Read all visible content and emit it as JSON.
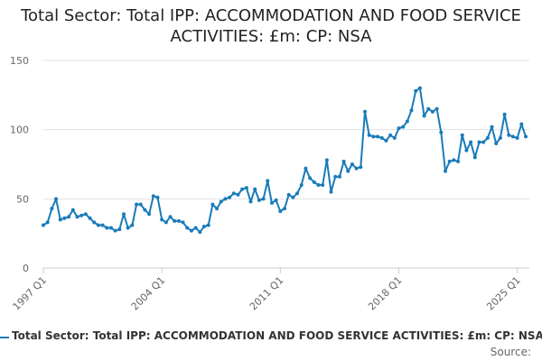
{
  "chart_data": {
    "type": "line",
    "title": "Total Sector: Total IPP: ACCOMMODATION AND FOOD SERVICE ACTIVITIES: £m: CP: NSA",
    "xlabel": "",
    "ylabel": "",
    "ylim": [
      0,
      150
    ],
    "yticks": [
      "0",
      "50",
      "100",
      "150"
    ],
    "xtick_labels": [
      "1997 Q1",
      "2004 Q1",
      "2011 Q1",
      "2018 Q1",
      "2025 Q1"
    ],
    "grid": "horizontal",
    "legend_position": "bottom",
    "series": [
      {
        "name": "Total Sector: Total IPP: ACCOMMODATION AND FOOD SERVICE ACTIVITIES: £m: CP: NSA",
        "color": "#1a7bba",
        "values": [
          31,
          33,
          43,
          50,
          35,
          36,
          37,
          42,
          37,
          38,
          39,
          36,
          33,
          31,
          31,
          29,
          29,
          27,
          28,
          39,
          29,
          31,
          46,
          46,
          42,
          39,
          52,
          51,
          35,
          33,
          37,
          34,
          34,
          33,
          29,
          27,
          29,
          26,
          30,
          31,
          46,
          43,
          48,
          50,
          51,
          54,
          53,
          57,
          58,
          48,
          57,
          49,
          50,
          63,
          47,
          49,
          41,
          43,
          53,
          51,
          54,
          60,
          72,
          65,
          62,
          60,
          60,
          78,
          55,
          66,
          66,
          77,
          70,
          75,
          72,
          73,
          113,
          96,
          95,
          95,
          94,
          92,
          96,
          94,
          101,
          102,
          106,
          114,
          128,
          130,
          110,
          115,
          113,
          115,
          98,
          70,
          77,
          78,
          77,
          96,
          85,
          91,
          80,
          91,
          91,
          94,
          102,
          90,
          94,
          111,
          96,
          95,
          94,
          104,
          95
        ]
      }
    ]
  },
  "source": "Source:"
}
